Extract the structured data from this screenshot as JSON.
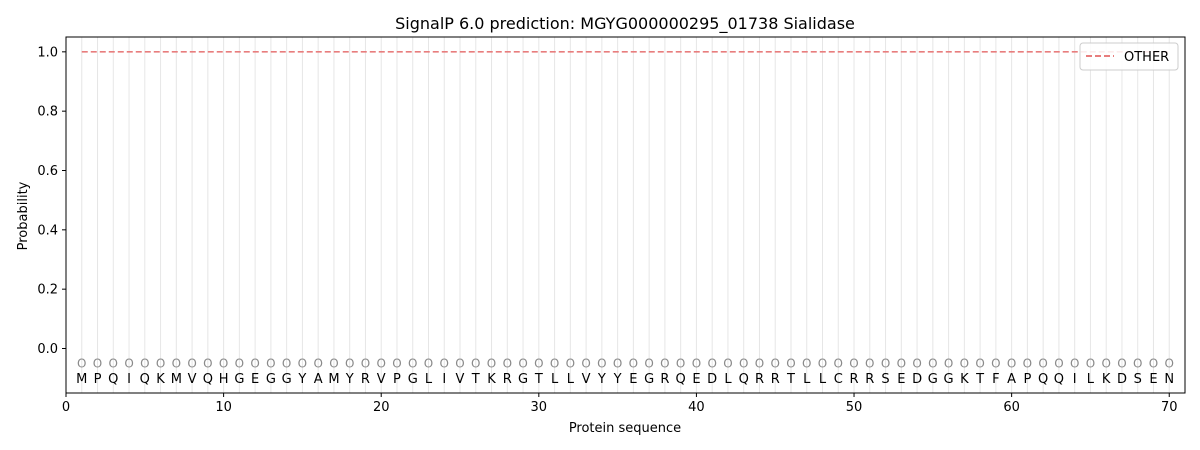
{
  "chart_data": {
    "type": "line",
    "title": "SignalP 6.0 prediction: MGYG000000295_01738 Sialidase",
    "xlabel": "Protein sequence",
    "ylabel": "Probability",
    "xlim": [
      0,
      71
    ],
    "ylim": [
      -0.15,
      1.05
    ],
    "xticks": [
      0,
      10,
      20,
      30,
      40,
      50,
      60,
      70
    ],
    "yticks": [
      0.0,
      0.2,
      0.4,
      0.6,
      0.8,
      1.0
    ],
    "ytick_labels": [
      "0.0",
      "0.2",
      "0.4",
      "0.6",
      "0.8",
      "1.0"
    ],
    "grid": "vertical lines at each residue",
    "legend": {
      "position": "top-right",
      "entries": [
        "OTHER"
      ]
    },
    "series": [
      {
        "name": "OTHER",
        "color": "#e87d7d",
        "style": "dashed",
        "x_start": 1,
        "x_end": 70,
        "value": 1.0
      }
    ],
    "sequence": [
      "M",
      "P",
      "Q",
      "I",
      "Q",
      "K",
      "M",
      "V",
      "Q",
      "H",
      "G",
      "E",
      "G",
      "G",
      "Y",
      "A",
      "M",
      "Y",
      "R",
      "V",
      "P",
      "G",
      "L",
      "I",
      "V",
      "T",
      "K",
      "R",
      "G",
      "T",
      "L",
      "L",
      "V",
      "Y",
      "Y",
      "E",
      "G",
      "R",
      "Q",
      "E",
      "D",
      "L",
      "Q",
      "R",
      "R",
      "T",
      "L",
      "L",
      "C",
      "R",
      "R",
      "S",
      "E",
      "D",
      "G",
      "G",
      "K",
      "T",
      "F",
      "A",
      "P",
      "Q",
      "Q",
      "I",
      "L",
      "K",
      "D",
      "S",
      "E",
      "N"
    ],
    "per_residue_label": "O"
  }
}
